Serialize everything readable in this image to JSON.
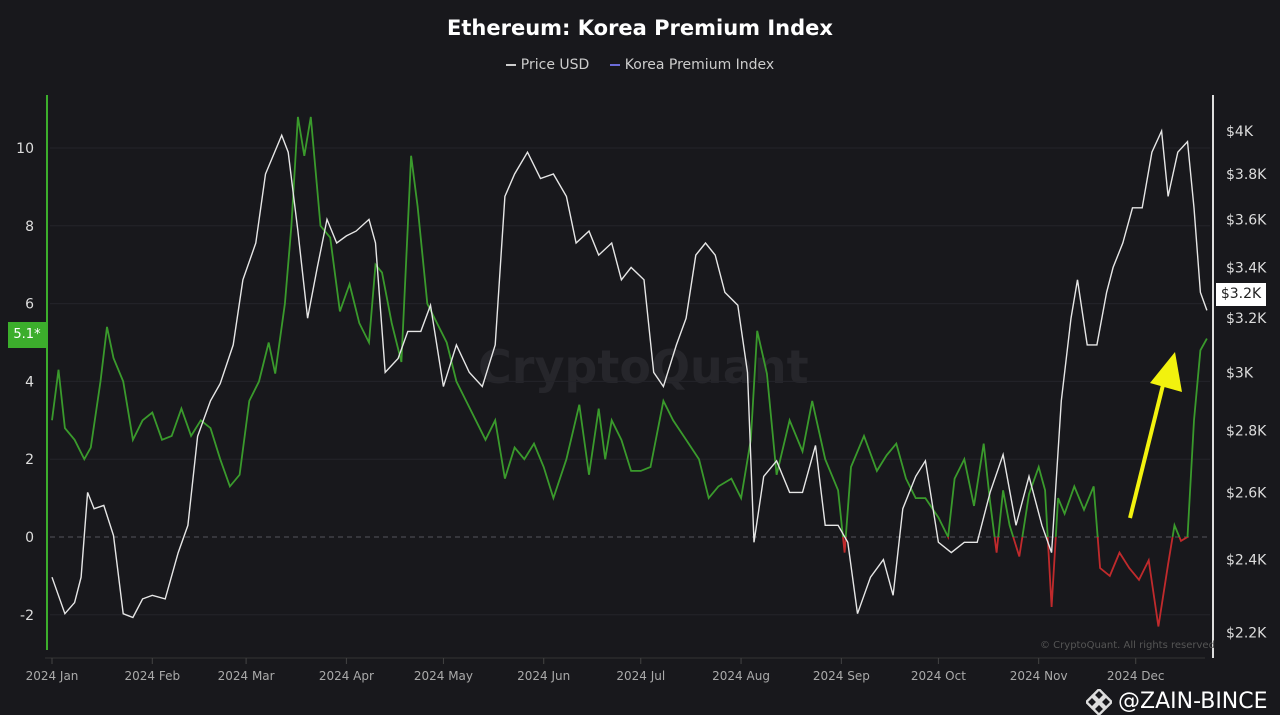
{
  "chart_data": {
    "type": "line",
    "title": "Ethereum: Korea Premium Index",
    "legend": {
      "placement": "top-center",
      "entries": [
        "Price USD",
        "Korea Premium Index"
      ]
    },
    "watermark": "CryptoQuant",
    "copyright": "© CryptoQuant. All rights reserved",
    "colors": {
      "price": "#e6e6e6",
      "legend_premium": "#6c6cd8",
      "premium_positive": "#3a9a2c",
      "premium_negative": "#c02a2c",
      "annotation_arrow": "#f2f20e",
      "left_axis": "#3cae2c"
    },
    "left_axis": {
      "range": [
        -3.2,
        11.4
      ],
      "ticks": [
        "-2",
        "0",
        "2",
        "4",
        "6",
        "8",
        "10"
      ],
      "tick_values": [
        -2,
        0,
        2,
        4,
        6,
        8,
        10
      ],
      "current_label": "5.1*"
    },
    "right_axis": {
      "scale": "log",
      "range": [
        2120,
        4240
      ],
      "ticks": [
        "$2.2K",
        "$2.4K",
        "$2.6K",
        "$2.8K",
        "$3K",
        "$3.2K",
        "$3.4K",
        "$3.6K",
        "$3.8K",
        "$4K"
      ],
      "tick_values": [
        2200,
        2400,
        2600,
        2800,
        3000,
        3200,
        3400,
        3600,
        3800,
        4000
      ],
      "current_label": "$3.2K"
    },
    "x_axis": {
      "ticks": [
        "2024 Jan",
        "2024 Feb",
        "2024 Mar",
        "2024 Apr",
        "2024 May",
        "2024 Jun",
        "2024 Jul",
        "2024 Aug",
        "2024 Sep",
        "2024 Oct",
        "2024 Nov",
        "2024 Dec"
      ],
      "tick_dates": [
        "2024-01-01",
        "2024-02-01",
        "2024-03-01",
        "2024-04-01",
        "2024-05-01",
        "2024-06-01",
        "2024-07-01",
        "2024-08-01",
        "2024-09-01",
        "2024-10-01",
        "2024-11-01",
        "2024-12-01"
      ]
    },
    "grid": true,
    "zero_line": "dashed",
    "annotation": "yellow arrow pointing up toward latest premium rise",
    "series": [
      {
        "name": "Price USD",
        "axis": "right",
        "points": [
          [
            "2024-01-01",
            2350
          ],
          [
            "2024-01-05",
            2250
          ],
          [
            "2024-01-08",
            2280
          ],
          [
            "2024-01-10",
            2350
          ],
          [
            "2024-01-12",
            2600
          ],
          [
            "2024-01-14",
            2550
          ],
          [
            "2024-01-17",
            2560
          ],
          [
            "2024-01-20",
            2470
          ],
          [
            "2024-01-23",
            2250
          ],
          [
            "2024-01-26",
            2240
          ],
          [
            "2024-01-29",
            2290
          ],
          [
            "2024-02-01",
            2300
          ],
          [
            "2024-02-05",
            2290
          ],
          [
            "2024-02-09",
            2420
          ],
          [
            "2024-02-12",
            2500
          ],
          [
            "2024-02-15",
            2780
          ],
          [
            "2024-02-19",
            2900
          ],
          [
            "2024-02-22",
            2960
          ],
          [
            "2024-02-26",
            3100
          ],
          [
            "2024-02-29",
            3350
          ],
          [
            "2024-03-04",
            3500
          ],
          [
            "2024-03-07",
            3800
          ],
          [
            "2024-03-12",
            3980
          ],
          [
            "2024-03-14",
            3900
          ],
          [
            "2024-03-17",
            3550
          ],
          [
            "2024-03-20",
            3200
          ],
          [
            "2024-03-23",
            3400
          ],
          [
            "2024-03-26",
            3600
          ],
          [
            "2024-03-29",
            3500
          ],
          [
            "2024-04-01",
            3530
          ],
          [
            "2024-04-04",
            3550
          ],
          [
            "2024-04-08",
            3600
          ],
          [
            "2024-04-10",
            3500
          ],
          [
            "2024-04-13",
            3000
          ],
          [
            "2024-04-17",
            3050
          ],
          [
            "2024-04-20",
            3150
          ],
          [
            "2024-04-24",
            3150
          ],
          [
            "2024-04-27",
            3250
          ],
          [
            "2024-05-01",
            2950
          ],
          [
            "2024-05-05",
            3100
          ],
          [
            "2024-05-09",
            3000
          ],
          [
            "2024-05-13",
            2950
          ],
          [
            "2024-05-17",
            3100
          ],
          [
            "2024-05-20",
            3700
          ],
          [
            "2024-05-23",
            3800
          ],
          [
            "2024-05-27",
            3900
          ],
          [
            "2024-05-31",
            3780
          ],
          [
            "2024-06-04",
            3800
          ],
          [
            "2024-06-08",
            3700
          ],
          [
            "2024-06-11",
            3500
          ],
          [
            "2024-06-15",
            3550
          ],
          [
            "2024-06-18",
            3450
          ],
          [
            "2024-06-22",
            3500
          ],
          [
            "2024-06-25",
            3350
          ],
          [
            "2024-06-28",
            3400
          ],
          [
            "2024-07-02",
            3350
          ],
          [
            "2024-07-05",
            3000
          ],
          [
            "2024-07-08",
            2950
          ],
          [
            "2024-07-12",
            3100
          ],
          [
            "2024-07-15",
            3200
          ],
          [
            "2024-07-18",
            3450
          ],
          [
            "2024-07-21",
            3500
          ],
          [
            "2024-07-24",
            3450
          ],
          [
            "2024-07-27",
            3300
          ],
          [
            "2024-07-31",
            3250
          ],
          [
            "2024-08-03",
            3000
          ],
          [
            "2024-08-05",
            2450
          ],
          [
            "2024-08-08",
            2650
          ],
          [
            "2024-08-12",
            2700
          ],
          [
            "2024-08-16",
            2600
          ],
          [
            "2024-08-20",
            2600
          ],
          [
            "2024-08-24",
            2750
          ],
          [
            "2024-08-27",
            2500
          ],
          [
            "2024-08-31",
            2500
          ],
          [
            "2024-09-03",
            2450
          ],
          [
            "2024-09-06",
            2250
          ],
          [
            "2024-09-10",
            2350
          ],
          [
            "2024-09-14",
            2400
          ],
          [
            "2024-09-17",
            2300
          ],
          [
            "2024-09-20",
            2550
          ],
          [
            "2024-09-24",
            2650
          ],
          [
            "2024-09-27",
            2700
          ],
          [
            "2024-10-01",
            2450
          ],
          [
            "2024-10-05",
            2420
          ],
          [
            "2024-10-09",
            2450
          ],
          [
            "2024-10-13",
            2450
          ],
          [
            "2024-10-17",
            2600
          ],
          [
            "2024-10-21",
            2720
          ],
          [
            "2024-10-25",
            2500
          ],
          [
            "2024-10-29",
            2650
          ],
          [
            "2024-11-02",
            2500
          ],
          [
            "2024-11-05",
            2420
          ],
          [
            "2024-11-08",
            2900
          ],
          [
            "2024-11-11",
            3200
          ],
          [
            "2024-11-13",
            3350
          ],
          [
            "2024-11-16",
            3100
          ],
          [
            "2024-11-19",
            3100
          ],
          [
            "2024-11-22",
            3300
          ],
          [
            "2024-11-24",
            3400
          ],
          [
            "2024-11-27",
            3500
          ],
          [
            "2024-11-30",
            3650
          ],
          [
            "2024-12-03",
            3650
          ],
          [
            "2024-12-06",
            3900
          ],
          [
            "2024-12-09",
            4000
          ],
          [
            "2024-12-11",
            3700
          ],
          [
            "2024-12-14",
            3900
          ],
          [
            "2024-12-17",
            3950
          ],
          [
            "2024-12-19",
            3650
          ],
          [
            "2024-12-21",
            3300
          ],
          [
            "2024-12-23",
            3230
          ]
        ]
      },
      {
        "name": "Korea Premium Index",
        "axis": "left",
        "points": [
          [
            "2024-01-01",
            3.0
          ],
          [
            "2024-01-03",
            4.3
          ],
          [
            "2024-01-05",
            2.8
          ],
          [
            "2024-01-08",
            2.5
          ],
          [
            "2024-01-11",
            2.0
          ],
          [
            "2024-01-13",
            2.3
          ],
          [
            "2024-01-16",
            4.0
          ],
          [
            "2024-01-18",
            5.4
          ],
          [
            "2024-01-20",
            4.6
          ],
          [
            "2024-01-23",
            4.0
          ],
          [
            "2024-01-26",
            2.5
          ],
          [
            "2024-01-29",
            3.0
          ],
          [
            "2024-02-01",
            3.2
          ],
          [
            "2024-02-04",
            2.5
          ],
          [
            "2024-02-07",
            2.6
          ],
          [
            "2024-02-10",
            3.3
          ],
          [
            "2024-02-13",
            2.6
          ],
          [
            "2024-02-16",
            3.0
          ],
          [
            "2024-02-19",
            2.8
          ],
          [
            "2024-02-22",
            2.0
          ],
          [
            "2024-02-25",
            1.3
          ],
          [
            "2024-02-28",
            1.6
          ],
          [
            "2024-03-02",
            3.5
          ],
          [
            "2024-03-05",
            4.0
          ],
          [
            "2024-03-08",
            5.0
          ],
          [
            "2024-03-10",
            4.2
          ],
          [
            "2024-03-13",
            6.0
          ],
          [
            "2024-03-15",
            8.0
          ],
          [
            "2024-03-17",
            10.8
          ],
          [
            "2024-03-19",
            9.8
          ],
          [
            "2024-03-21",
            10.8
          ],
          [
            "2024-03-24",
            8.0
          ],
          [
            "2024-03-27",
            7.7
          ],
          [
            "2024-03-30",
            5.8
          ],
          [
            "2024-04-02",
            6.5
          ],
          [
            "2024-04-05",
            5.5
          ],
          [
            "2024-04-08",
            5.0
          ],
          [
            "2024-04-10",
            7.0
          ],
          [
            "2024-04-12",
            6.8
          ],
          [
            "2024-04-15",
            5.5
          ],
          [
            "2024-04-18",
            4.5
          ],
          [
            "2024-04-21",
            9.8
          ],
          [
            "2024-04-23",
            8.5
          ],
          [
            "2024-04-26",
            6.0
          ],
          [
            "2024-04-29",
            5.5
          ],
          [
            "2024-05-02",
            5.0
          ],
          [
            "2024-05-05",
            4.0
          ],
          [
            "2024-05-08",
            3.5
          ],
          [
            "2024-05-11",
            3.0
          ],
          [
            "2024-05-14",
            2.5
          ],
          [
            "2024-05-17",
            3.0
          ],
          [
            "2024-05-20",
            1.5
          ],
          [
            "2024-05-23",
            2.3
          ],
          [
            "2024-05-26",
            2.0
          ],
          [
            "2024-05-29",
            2.4
          ],
          [
            "2024-06-01",
            1.8
          ],
          [
            "2024-06-04",
            1.0
          ],
          [
            "2024-06-08",
            2.0
          ],
          [
            "2024-06-12",
            3.4
          ],
          [
            "2024-06-15",
            1.6
          ],
          [
            "2024-06-18",
            3.3
          ],
          [
            "2024-06-20",
            2.0
          ],
          [
            "2024-06-22",
            3.0
          ],
          [
            "2024-06-25",
            2.5
          ],
          [
            "2024-06-28",
            1.7
          ],
          [
            "2024-07-01",
            1.7
          ],
          [
            "2024-07-04",
            1.8
          ],
          [
            "2024-07-08",
            3.5
          ],
          [
            "2024-07-11",
            3.0
          ],
          [
            "2024-07-15",
            2.5
          ],
          [
            "2024-07-19",
            2.0
          ],
          [
            "2024-07-22",
            1.0
          ],
          [
            "2024-07-25",
            1.3
          ],
          [
            "2024-07-29",
            1.5
          ],
          [
            "2024-08-01",
            1.0
          ],
          [
            "2024-08-04",
            2.5
          ],
          [
            "2024-08-06",
            5.3
          ],
          [
            "2024-08-09",
            4.2
          ],
          [
            "2024-08-12",
            1.6
          ],
          [
            "2024-08-16",
            3.0
          ],
          [
            "2024-08-20",
            2.2
          ],
          [
            "2024-08-23",
            3.5
          ],
          [
            "2024-08-27",
            2.0
          ],
          [
            "2024-08-31",
            1.2
          ],
          [
            "2024-09-02",
            -0.4
          ],
          [
            "2024-09-04",
            1.8
          ],
          [
            "2024-09-08",
            2.6
          ],
          [
            "2024-09-12",
            1.7
          ],
          [
            "2024-09-15",
            2.1
          ],
          [
            "2024-09-18",
            2.4
          ],
          [
            "2024-09-21",
            1.5
          ],
          [
            "2024-09-24",
            1.0
          ],
          [
            "2024-09-27",
            1.0
          ],
          [
            "2024-10-01",
            0.5
          ],
          [
            "2024-10-04",
            0.0
          ],
          [
            "2024-10-06",
            1.5
          ],
          [
            "2024-10-09",
            2.0
          ],
          [
            "2024-10-12",
            0.8
          ],
          [
            "2024-10-15",
            2.4
          ],
          [
            "2024-10-17",
            0.9
          ],
          [
            "2024-10-19",
            -0.4
          ],
          [
            "2024-10-21",
            1.2
          ],
          [
            "2024-10-23",
            0.3
          ],
          [
            "2024-10-26",
            -0.5
          ],
          [
            "2024-10-29",
            1.1
          ],
          [
            "2024-11-01",
            1.8
          ],
          [
            "2024-11-03",
            1.2
          ],
          [
            "2024-11-05",
            -1.8
          ],
          [
            "2024-11-07",
            1.0
          ],
          [
            "2024-11-09",
            0.6
          ],
          [
            "2024-11-12",
            1.3
          ],
          [
            "2024-11-15",
            0.7
          ],
          [
            "2024-11-18",
            1.3
          ],
          [
            "2024-11-20",
            -0.8
          ],
          [
            "2024-11-23",
            -1.0
          ],
          [
            "2024-11-26",
            -0.4
          ],
          [
            "2024-11-29",
            -0.8
          ],
          [
            "2024-12-02",
            -1.1
          ],
          [
            "2024-12-05",
            -0.6
          ],
          [
            "2024-12-08",
            -2.3
          ],
          [
            "2024-12-11",
            -0.7
          ],
          [
            "2024-12-13",
            0.3
          ],
          [
            "2024-12-15",
            -0.1
          ],
          [
            "2024-12-17",
            0.0
          ],
          [
            "2024-12-19",
            3.0
          ],
          [
            "2024-12-21",
            4.8
          ],
          [
            "2024-12-23",
            5.1
          ]
        ]
      }
    ]
  },
  "footer": {
    "brand": "@ZAIN-BINCE",
    "brand_logo": "binance-logo-icon"
  }
}
